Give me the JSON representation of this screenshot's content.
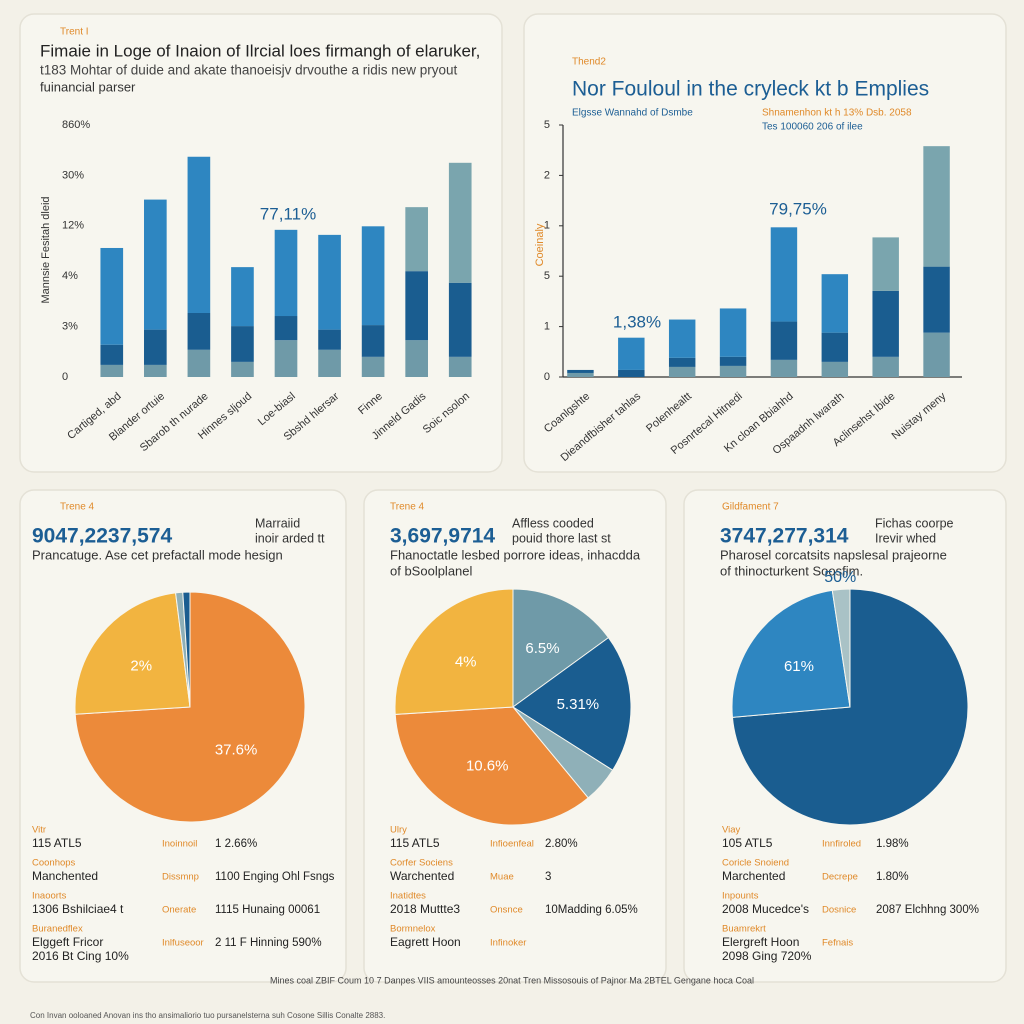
{
  "chart_data": [
    {
      "type": "bar",
      "stacked": true,
      "label": "Trent I",
      "title": "Fimaie in Loge of Inaion of Ilrcial loes firmangh of elaruker,",
      "subtitle": [
        "t183 Mohtar of duide and akate thanoeisjv drvouthe a ridis new pryout",
        "fuinancial parser"
      ],
      "ylabel": "Mannsie Fesitah dleid",
      "categories": [
        "Cartiged, abd",
        "Blander ortuie",
        "Sbarob th nurade",
        "Hinnes sljoud",
        "Loe-biasl",
        "Sbshd hlersar",
        "Finne",
        "Jinneld Gadis",
        "Soic nsolon"
      ],
      "series": [
        {
          "color": "#6f9aa8",
          "values": [
            0.24,
            0.24,
            0.54,
            0.3,
            0.73,
            0.54,
            0.4,
            0.73,
            0.4
          ]
        },
        {
          "color": "#1a5d90",
          "values": [
            0.4,
            0.7,
            0.73,
            0.71,
            0.48,
            0.4,
            0.63,
            1.37,
            1.47
          ]
        },
        {
          "color": "#2e86c1",
          "colors": [
            "#2e86c1",
            "#2e86c1",
            "#2e86c1",
            "#2e86c1",
            "#2e86c1",
            "#2e86c1",
            "#2e86c1",
            "#7aa5ae",
            "#7aa5ae"
          ],
          "values": [
            1.92,
            2.58,
            3.1,
            1.17,
            1.71,
            1.88,
            1.96,
            1.27,
            2.38
          ]
        }
      ],
      "ylim": [
        0,
        5
      ],
      "yticks": [
        0,
        {
          "value": 1,
          "label": "3%"
        },
        {
          "value": 2,
          "label": "4%"
        },
        {
          "value": 3,
          "label": "12%"
        },
        {
          "value": 4,
          "label": "30%"
        },
        {
          "value": 5,
          "label": "860%"
        }
      ],
      "axes": false,
      "annotations": [
        "77,11%"
      ]
    },
    {
      "type": "bar",
      "stacked": true,
      "label": "Thend2",
      "title": "Nor Fouloul in the cryleck kt b Emplies",
      "subtitle": [
        "Elgsse Wannahd of Dsmbe",
        "Shnamenhon kt h 13% Dsb. 2058",
        "Tes 100060 206 of ilee"
      ],
      "ylabel": "Coeinaly",
      "categories": [
        "Coanlgshte",
        "Dieandfbisher tahlas",
        "Polenhealtt",
        "Posnrtecal Hitnedi",
        "Kn cloan Bbiahhd",
        "Ospaadnh lwarath",
        "Aclinsehst Ibide",
        "Nuistay meny"
      ],
      "series": [
        {
          "color": "#6f9aa8",
          "values": [
            0.08,
            0,
            0.2,
            0.22,
            0.34,
            0.3,
            0.4,
            0.88
          ]
        },
        {
          "color": "#1a5d90",
          "values": [
            0.06,
            0.14,
            0.18,
            0.18,
            0.76,
            0.58,
            1.31,
            1.31
          ]
        },
        {
          "color": "#2e86c1",
          "colors": [
            "#2e86c1",
            "#2e86c1",
            "#2e86c1",
            "#2e86c1",
            "#2e86c1",
            "#2e86c1",
            "#7aa5ae",
            "#7aa5ae"
          ],
          "values": [
            0,
            0.64,
            0.76,
            0.96,
            1.87,
            1.16,
            1.06,
            2.39
          ]
        }
      ],
      "ylim": [
        0,
        5
      ],
      "yticks": [
        0,
        1,
        {
          "value": 2,
          "label": "5"
        },
        {
          "value": 3,
          "label": "1"
        },
        {
          "value": 4,
          "label": "2"
        },
        {
          "value": 5,
          "label": "5"
        }
      ],
      "axes": true,
      "annotations": [
        "79,75%",
        "1,38%"
      ]
    },
    {
      "type": "pie",
      "label": "Trene 4",
      "headline": "9047,2237,574",
      "aside": [
        "Marraiid",
        "inoir arded tt"
      ],
      "caption": [
        "Prancatuge. Ase cet prefactall mode hesign"
      ],
      "values": [
        74,
        24,
        1,
        1
      ],
      "colors": [
        "#ec8a3a",
        "#f2b440",
        "#8fb0b8",
        "#1a5d90"
      ],
      "annotations": [
        "37.6%",
        "2%",
        null,
        null
      ],
      "stats": [
        {
          "left": {
            "label": "Vitr",
            "lines": [
              "115 ATL5"
            ]
          },
          "right": {
            "label": "Inoinnoil",
            "value": "1 2.66%"
          }
        },
        {
          "left": {
            "label": "Coonhops",
            "lines": [
              "Manchented"
            ]
          },
          "right": {
            "label": "Dissmnp",
            "value": "1100 Enging Ohl Fsngs"
          }
        },
        {
          "left": {
            "label": "Inaoorts",
            "lines": [
              "1306 Bshilciae4 t"
            ]
          },
          "right": {
            "label": "Onerate",
            "value": "1115 Hunaing 00061"
          }
        },
        {
          "left": {
            "label": "Buranedflex",
            "lines": [
              "Elggeft Fricor",
              "2016 Bt Cing 10%"
            ]
          },
          "right": {
            "label": "Inlfuseoor",
            "value": "2 11 F Hinning 590%"
          }
        }
      ]
    },
    {
      "type": "pie",
      "label": "Trene 4",
      "headline": "3,697,9714",
      "aside": [
        "Affless cooded",
        "pouid thore last st"
      ],
      "caption": [
        "Fhanoctatle lesbed porrore ideas, inhacdda",
        "of bSoolplanel"
      ],
      "values": [
        15,
        19,
        5,
        35,
        26
      ],
      "colors": [
        "#6f9aa8",
        "#1a5d90",
        "#8fb0b8",
        "#ec8a3a",
        "#f2b440"
      ],
      "annotations": [
        "6.5%",
        "5.31%",
        null,
        "10.6%",
        "4%"
      ],
      "stats": [
        {
          "left": {
            "label": "Ulry",
            "lines": [
              "115 ATL5"
            ]
          },
          "right": {
            "label": "Infioenfeal",
            "value": "2.80%"
          }
        },
        {
          "left": {
            "label": "Corfer Sociens",
            "lines": [
              "Warchented"
            ]
          },
          "right": {
            "label": "Muae",
            "value": "3"
          }
        },
        {
          "left": {
            "label": "Inatidtes",
            "lines": [
              "2018 Muttte3"
            ]
          },
          "right": {
            "label": "Onsnce",
            "value": "10Madding 6.05%"
          }
        },
        {
          "left": {
            "label": "Bormnelox",
            "lines": [
              "Eagrett Hoon"
            ]
          },
          "right": {
            "label": "Infinoker"
          }
        }
      ]
    },
    {
      "type": "pie",
      "label": "Gildfament 7",
      "headline": "3747,277,314",
      "aside": [
        "Fichas coorpe",
        "Irevir whed"
      ],
      "caption": [
        "Pharosel corcatsits napslesal prajeorne",
        "of thinocturkent Soosfim."
      ],
      "values": [
        73.6,
        24,
        2.4
      ],
      "colors": [
        "#1a5d90",
        "#2e86c1",
        "#a9c2c6"
      ],
      "annotations": [
        null,
        "61%",
        "50%"
      ],
      "stats": [
        {
          "left": {
            "label": "Viay",
            "lines": [
              "105 ATL5"
            ]
          },
          "right": {
            "label": "Innfiroled",
            "value": "1.98%"
          }
        },
        {
          "left": {
            "label": "Coricle Snoiend",
            "lines": [
              "Marchented"
            ]
          },
          "right": {
            "label": "Decrepe",
            "value": "1.80%"
          }
        },
        {
          "left": {
            "label": "Inpounts",
            "lines": [
              "2008 Mucedce's"
            ]
          },
          "right": {
            "label": "Dosnice",
            "value": "2087 Elchhng 300%"
          }
        },
        {
          "left": {
            "label": "Buamrekrt",
            "lines": [
              "Elergreft Hoon",
              "2098 Ging 720%"
            ]
          },
          "right": {
            "label": "Fefnais"
          }
        }
      ]
    }
  ],
  "footer": [
    "Mines coal ZBIF Coum 10 7 Danpes VIIS amounteosses 20nat Tren Missosouis of Pajnor Ma 2BTEL Gengane hoca Coal",
    "Con Invan ooloaned Anovan ins tho ansimaliorio tuo pursanelsterna suh Cosone Sillis Conalte 2883."
  ]
}
